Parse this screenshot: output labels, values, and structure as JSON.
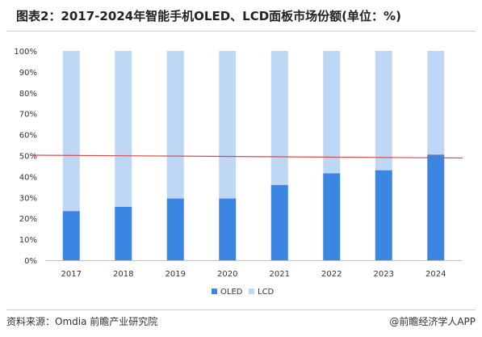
{
  "title": "图表2：2017-2024年智能手机OLED、LCD面板市场份额(单位：%)",
  "source": "资料来源：Omdia 前瞻产业研究院",
  "brand": "@前瞻经济学人APP",
  "colors": {
    "OLED": "#3b86e3",
    "LCD": "#bdd7f5",
    "reference_line": "#d94a4a"
  },
  "chart_data": {
    "type": "bar",
    "stacked": true,
    "categories": [
      "2017",
      "2018",
      "2019",
      "2020",
      "2021",
      "2022",
      "2023",
      "2024"
    ],
    "series": [
      {
        "name": "OLED",
        "values": [
          23.5,
          25.5,
          29.5,
          29.5,
          36,
          41.5,
          43,
          50.5
        ]
      },
      {
        "name": "LCD",
        "values": [
          76.5,
          74.5,
          70.5,
          70.5,
          64,
          58.5,
          57,
          49.5
        ]
      }
    ],
    "ylim": [
      0,
      100
    ],
    "yticks": [
      "0%",
      "10%",
      "20%",
      "30%",
      "40%",
      "50%",
      "60%",
      "70%",
      "80%",
      "90%",
      "100%"
    ],
    "reference_line": {
      "value": 50
    },
    "legend_position": "bottom-center",
    "grid": false
  }
}
